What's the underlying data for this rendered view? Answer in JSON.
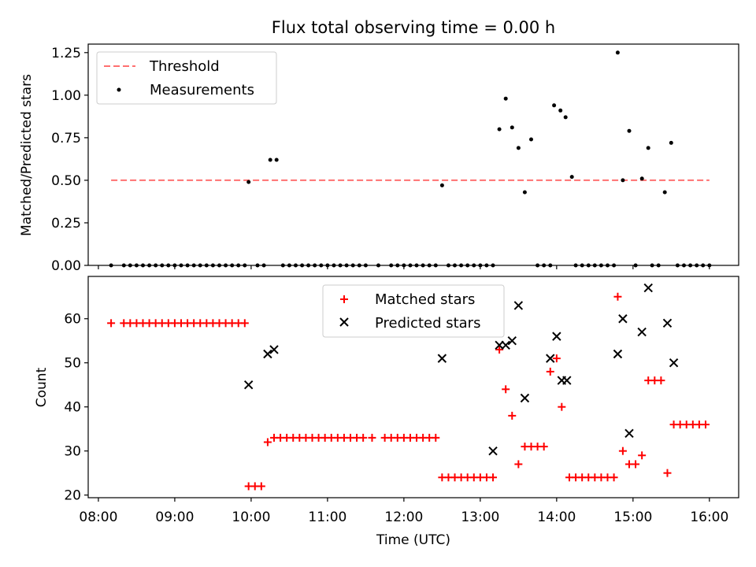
{
  "chart_data": [
    {
      "type": "scatter",
      "title": "Flux total observing time = 0.00 h",
      "xlabel": "",
      "ylabel": "Matched/Predicted stars",
      "xlim": [
        "07:52",
        "16:23"
      ],
      "ylim": [
        0,
        1.3
      ],
      "yticks": [
        0.0,
        0.25,
        0.5,
        0.75,
        1.0,
        1.25
      ],
      "ytick_labels": [
        "0.00",
        "0.25",
        "0.50",
        "0.75",
        "1.00",
        "1.25"
      ],
      "grid": false,
      "legend_position": "upper-left",
      "threshold": {
        "name": "Threshold",
        "value": 0.5,
        "x": [
          "08:10",
          "16:00"
        ],
        "color": "#ff7070",
        "style": "dashed"
      },
      "series": [
        {
          "name": "Measurements",
          "color": "#000000",
          "marker": "dot",
          "points": [
            [
              "08:10",
              0
            ],
            [
              "08:20",
              0
            ],
            [
              "08:25",
              0
            ],
            [
              "08:30",
              0
            ],
            [
              "08:35",
              0
            ],
            [
              "08:40",
              0
            ],
            [
              "08:45",
              0
            ],
            [
              "08:50",
              0
            ],
            [
              "08:55",
              0
            ],
            [
              "09:00",
              0
            ],
            [
              "09:05",
              0
            ],
            [
              "09:10",
              0
            ],
            [
              "09:15",
              0
            ],
            [
              "09:20",
              0
            ],
            [
              "09:25",
              0
            ],
            [
              "09:30",
              0
            ],
            [
              "09:35",
              0
            ],
            [
              "09:40",
              0
            ],
            [
              "09:45",
              0
            ],
            [
              "09:50",
              0
            ],
            [
              "09:55",
              0
            ],
            [
              "09:58",
              0.49
            ],
            [
              "10:05",
              0
            ],
            [
              "10:10",
              0
            ],
            [
              "10:15",
              0.62
            ],
            [
              "10:20",
              0.62
            ],
            [
              "10:25",
              0
            ],
            [
              "10:30",
              0
            ],
            [
              "10:35",
              0
            ],
            [
              "10:40",
              0
            ],
            [
              "10:45",
              0
            ],
            [
              "10:50",
              0
            ],
            [
              "10:55",
              0
            ],
            [
              "11:00",
              0
            ],
            [
              "11:05",
              0
            ],
            [
              "11:10",
              0
            ],
            [
              "11:15",
              0
            ],
            [
              "11:20",
              0
            ],
            [
              "11:25",
              0
            ],
            [
              "11:30",
              0
            ],
            [
              "11:40",
              0
            ],
            [
              "11:50",
              0
            ],
            [
              "11:55",
              0
            ],
            [
              "12:00",
              0
            ],
            [
              "12:05",
              0
            ],
            [
              "12:10",
              0
            ],
            [
              "12:15",
              0
            ],
            [
              "12:20",
              0
            ],
            [
              "12:25",
              0
            ],
            [
              "12:30",
              0.47
            ],
            [
              "12:35",
              0
            ],
            [
              "12:40",
              0
            ],
            [
              "12:45",
              0
            ],
            [
              "12:50",
              0
            ],
            [
              "12:55",
              0
            ],
            [
              "13:00",
              0
            ],
            [
              "13:05",
              0
            ],
            [
              "13:10",
              0
            ],
            [
              "13:15",
              0.8
            ],
            [
              "13:20",
              0.98
            ],
            [
              "13:25",
              0.81
            ],
            [
              "13:30",
              0.69
            ],
            [
              "13:35",
              0.43
            ],
            [
              "13:40",
              0.74
            ],
            [
              "13:45",
              0
            ],
            [
              "13:50",
              0
            ],
            [
              "13:55",
              0
            ],
            [
              "13:58",
              0.94
            ],
            [
              "14:03",
              0.91
            ],
            [
              "14:07",
              0.87
            ],
            [
              "14:12",
              0.52
            ],
            [
              "14:15",
              0
            ],
            [
              "14:20",
              0
            ],
            [
              "14:25",
              0
            ],
            [
              "14:30",
              0
            ],
            [
              "14:35",
              0
            ],
            [
              "14:40",
              0
            ],
            [
              "14:45",
              0
            ],
            [
              "14:48",
              1.25
            ],
            [
              "14:52",
              0.5
            ],
            [
              "14:57",
              0.79
            ],
            [
              "15:02",
              0
            ],
            [
              "15:07",
              0.51
            ],
            [
              "15:12",
              0.69
            ],
            [
              "15:15",
              0
            ],
            [
              "15:20",
              0
            ],
            [
              "15:25",
              0.43
            ],
            [
              "15:30",
              0.72
            ],
            [
              "15:35",
              0
            ],
            [
              "15:40",
              0
            ],
            [
              "15:45",
              0
            ],
            [
              "15:50",
              0
            ],
            [
              "15:55",
              0
            ],
            [
              "16:00",
              0
            ]
          ]
        }
      ]
    },
    {
      "type": "scatter",
      "title": "",
      "xlabel": "Time (UTC)",
      "ylabel": "Count",
      "xlim": [
        "07:52",
        "16:23"
      ],
      "ylim": [
        19.4,
        69.6
      ],
      "yticks": [
        20,
        30,
        40,
        50,
        60
      ],
      "xtick_labels": [
        "08:00",
        "09:00",
        "10:00",
        "11:00",
        "12:00",
        "13:00",
        "14:00",
        "15:00",
        "16:00"
      ],
      "grid": false,
      "legend_position": "upper-center",
      "series": [
        {
          "name": "Matched stars",
          "color": "#ff0000",
          "marker": "plus",
          "points": [
            [
              "08:10",
              59
            ],
            [
              "08:20",
              59
            ],
            [
              "08:25",
              59
            ],
            [
              "08:30",
              59
            ],
            [
              "08:35",
              59
            ],
            [
              "08:40",
              59
            ],
            [
              "08:45",
              59
            ],
            [
              "08:50",
              59
            ],
            [
              "08:55",
              59
            ],
            [
              "09:00",
              59
            ],
            [
              "09:05",
              59
            ],
            [
              "09:10",
              59
            ],
            [
              "09:15",
              59
            ],
            [
              "09:20",
              59
            ],
            [
              "09:25",
              59
            ],
            [
              "09:30",
              59
            ],
            [
              "09:35",
              59
            ],
            [
              "09:40",
              59
            ],
            [
              "09:45",
              59
            ],
            [
              "09:50",
              59
            ],
            [
              "09:55",
              59
            ],
            [
              "09:58",
              22
            ],
            [
              "10:03",
              22
            ],
            [
              "10:08",
              22
            ],
            [
              "10:13",
              32
            ],
            [
              "10:18",
              33
            ],
            [
              "10:23",
              33
            ],
            [
              "10:28",
              33
            ],
            [
              "10:33",
              33
            ],
            [
              "10:38",
              33
            ],
            [
              "10:43",
              33
            ],
            [
              "10:48",
              33
            ],
            [
              "10:53",
              33
            ],
            [
              "10:58",
              33
            ],
            [
              "11:03",
              33
            ],
            [
              "11:08",
              33
            ],
            [
              "11:13",
              33
            ],
            [
              "11:18",
              33
            ],
            [
              "11:23",
              33
            ],
            [
              "11:28",
              33
            ],
            [
              "11:35",
              33
            ],
            [
              "11:45",
              33
            ],
            [
              "11:50",
              33
            ],
            [
              "11:55",
              33
            ],
            [
              "12:00",
              33
            ],
            [
              "12:05",
              33
            ],
            [
              "12:10",
              33
            ],
            [
              "12:15",
              33
            ],
            [
              "12:20",
              33
            ],
            [
              "12:25",
              33
            ],
            [
              "12:30",
              24
            ],
            [
              "12:35",
              24
            ],
            [
              "12:40",
              24
            ],
            [
              "12:45",
              24
            ],
            [
              "12:50",
              24
            ],
            [
              "12:55",
              24
            ],
            [
              "13:00",
              24
            ],
            [
              "13:05",
              24
            ],
            [
              "13:10",
              24
            ],
            [
              "13:15",
              53
            ],
            [
              "13:20",
              44
            ],
            [
              "13:25",
              38
            ],
            [
              "13:30",
              27
            ],
            [
              "13:35",
              31
            ],
            [
              "13:40",
              31
            ],
            [
              "13:45",
              31
            ],
            [
              "13:50",
              31
            ],
            [
              "13:55",
              48
            ],
            [
              "14:00",
              51
            ],
            [
              "14:04",
              40
            ],
            [
              "14:10",
              24
            ],
            [
              "14:15",
              24
            ],
            [
              "14:20",
              24
            ],
            [
              "14:25",
              24
            ],
            [
              "14:30",
              24
            ],
            [
              "14:35",
              24
            ],
            [
              "14:40",
              24
            ],
            [
              "14:45",
              24
            ],
            [
              "14:48",
              65
            ],
            [
              "14:52",
              30
            ],
            [
              "14:57",
              27
            ],
            [
              "15:02",
              27
            ],
            [
              "15:07",
              29
            ],
            [
              "15:12",
              46
            ],
            [
              "15:17",
              46
            ],
            [
              "15:22",
              46
            ],
            [
              "15:27",
              25
            ],
            [
              "15:32",
              36
            ],
            [
              "15:37",
              36
            ],
            [
              "15:42",
              36
            ],
            [
              "15:47",
              36
            ],
            [
              "15:52",
              36
            ],
            [
              "15:57",
              36
            ]
          ]
        },
        {
          "name": "Predicted stars",
          "color": "#000000",
          "marker": "x",
          "points": [
            [
              "09:58",
              45
            ],
            [
              "10:13",
              52
            ],
            [
              "10:18",
              53
            ],
            [
              "12:30",
              51
            ],
            [
              "13:10",
              30
            ],
            [
              "13:15",
              54
            ],
            [
              "13:20",
              54
            ],
            [
              "13:25",
              55
            ],
            [
              "13:30",
              63
            ],
            [
              "13:35",
              42
            ],
            [
              "13:55",
              51
            ],
            [
              "14:00",
              56
            ],
            [
              "14:04",
              46
            ],
            [
              "14:08",
              46
            ],
            [
              "14:48",
              52
            ],
            [
              "14:52",
              60
            ],
            [
              "14:57",
              34
            ],
            [
              "15:07",
              57
            ],
            [
              "15:12",
              67
            ],
            [
              "15:27",
              59
            ],
            [
              "15:32",
              50
            ]
          ]
        }
      ]
    }
  ]
}
